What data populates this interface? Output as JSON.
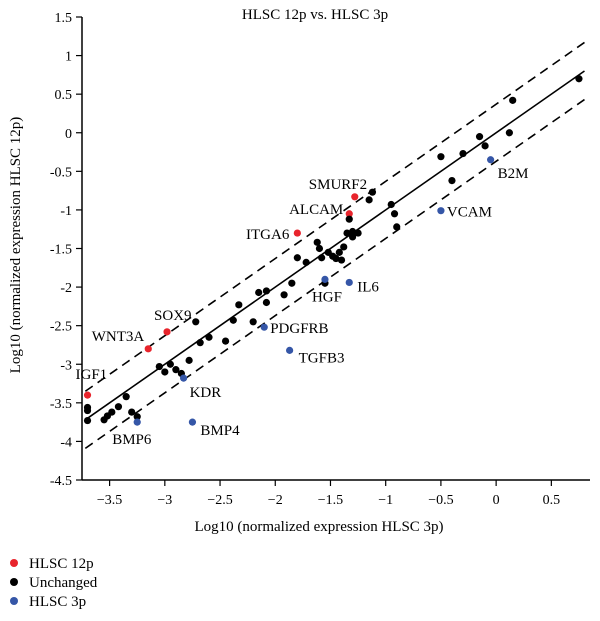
{
  "chart_data": {
    "type": "scatter",
    "title": "HLSC 12p vs. HLSC 3p",
    "xlabel": "Log10 (normalized expression HLSC 3p)",
    "ylabel": "Log10 (normalized expression HLSC 12p)",
    "xlim": [
      -3.75,
      0.85
    ],
    "ylim": [
      -4.5,
      1.5
    ],
    "xticks": [
      "-3.5",
      "-3",
      "-2.5",
      "-2",
      "-1.5",
      "-1",
      "-0.5",
      "0",
      "0.5"
    ],
    "xtick_values": [
      -3.5,
      -3,
      -2.5,
      -2,
      -1.5,
      -1,
      -0.5,
      0,
      0.5
    ],
    "yticks": [
      "1.5",
      "1",
      "0.5",
      "0",
      "-0.5",
      "-1",
      "-1.5",
      "-2",
      "-2.5",
      "-3",
      "-3.5",
      "-4",
      "-4.5"
    ],
    "ytick_values": [
      1.5,
      1,
      0.5,
      0,
      -0.5,
      -1,
      -1.5,
      -2,
      -2.5,
      -3,
      -3.5,
      -4,
      -4.5
    ],
    "grid": false,
    "legend_position": "bottom-left",
    "reference_lines": {
      "identity": {
        "slope": 1,
        "intercept": 0,
        "style": "solid"
      },
      "bounds": [
        {
          "slope": 1,
          "intercept": 0.37,
          "style": "dashed"
        },
        {
          "slope": 1,
          "intercept": -0.37,
          "style": "dashed"
        }
      ]
    },
    "series": [
      {
        "name": "HLSC 12p",
        "color": "#e8242c",
        "points": [
          {
            "x": -3.7,
            "y": -3.4,
            "label": "IGF1"
          },
          {
            "x": -3.15,
            "y": -2.8,
            "label": "WNT3A"
          },
          {
            "x": -2.98,
            "y": -2.58,
            "label": "SOX9"
          },
          {
            "x": -1.8,
            "y": -1.3,
            "label": "ITGA6"
          },
          {
            "x": -1.33,
            "y": -1.05,
            "label": "ALCAM"
          },
          {
            "x": -1.28,
            "y": -0.83,
            "label": "SMURF2"
          }
        ]
      },
      {
        "name": "Unchanged",
        "color": "#000000",
        "points": [
          {
            "x": -3.7,
            "y": -3.73
          },
          {
            "x": -3.7,
            "y": -3.6
          },
          {
            "x": -3.7,
            "y": -3.56
          },
          {
            "x": -3.55,
            "y": -3.72
          },
          {
            "x": -3.52,
            "y": -3.67
          },
          {
            "x": -3.48,
            "y": -3.62
          },
          {
            "x": -3.42,
            "y": -3.55
          },
          {
            "x": -3.35,
            "y": -3.42
          },
          {
            "x": -3.3,
            "y": -3.62
          },
          {
            "x": -3.25,
            "y": -3.68
          },
          {
            "x": -3.05,
            "y": -3.03
          },
          {
            "x": -3.0,
            "y": -3.1
          },
          {
            "x": -2.95,
            "y": -3.0
          },
          {
            "x": -2.9,
            "y": -3.07
          },
          {
            "x": -2.85,
            "y": -3.12
          },
          {
            "x": -2.78,
            "y": -2.95
          },
          {
            "x": -2.72,
            "y": -2.45
          },
          {
            "x": -2.68,
            "y": -2.72
          },
          {
            "x": -2.6,
            "y": -2.65
          },
          {
            "x": -2.45,
            "y": -2.7
          },
          {
            "x": -2.38,
            "y": -2.43
          },
          {
            "x": -2.33,
            "y": -2.23
          },
          {
            "x": -2.2,
            "y": -2.45
          },
          {
            "x": -2.15,
            "y": -2.07
          },
          {
            "x": -2.08,
            "y": -2.2
          },
          {
            "x": -2.08,
            "y": -2.05
          },
          {
            "x": -1.92,
            "y": -2.1
          },
          {
            "x": -1.85,
            "y": -1.95
          },
          {
            "x": -1.8,
            "y": -1.62
          },
          {
            "x": -1.72,
            "y": -1.68
          },
          {
            "x": -1.62,
            "y": -1.42
          },
          {
            "x": -1.6,
            "y": -1.5
          },
          {
            "x": -1.58,
            "y": -1.62
          },
          {
            "x": -1.55,
            "y": -1.95
          },
          {
            "x": -1.52,
            "y": -1.55
          },
          {
            "x": -1.48,
            "y": -1.6
          },
          {
            "x": -1.45,
            "y": -1.63
          },
          {
            "x": -1.42,
            "y": -1.55
          },
          {
            "x": -1.4,
            "y": -1.65
          },
          {
            "x": -1.38,
            "y": -1.48
          },
          {
            "x": -1.35,
            "y": -1.3
          },
          {
            "x": -1.33,
            "y": -1.12
          },
          {
            "x": -1.3,
            "y": -1.35
          },
          {
            "x": -1.3,
            "y": -1.28
          },
          {
            "x": -1.25,
            "y": -1.3
          },
          {
            "x": -1.15,
            "y": -0.87
          },
          {
            "x": -1.12,
            "y": -0.77
          },
          {
            "x": -0.95,
            "y": -0.93
          },
          {
            "x": -0.92,
            "y": -1.05
          },
          {
            "x": -0.9,
            "y": -1.22
          },
          {
            "x": -0.5,
            "y": -0.31
          },
          {
            "x": -0.4,
            "y": -0.62
          },
          {
            "x": -0.3,
            "y": -0.27
          },
          {
            "x": -0.15,
            "y": -0.05
          },
          {
            "x": -0.1,
            "y": -0.17
          },
          {
            "x": 0.12,
            "y": 0.0
          },
          {
            "x": 0.15,
            "y": 0.42
          },
          {
            "x": 0.75,
            "y": 0.7
          }
        ]
      },
      {
        "name": "HLSC 3p",
        "color": "#3556a7",
        "points": [
          {
            "x": -3.25,
            "y": -3.75,
            "label": "BMP6"
          },
          {
            "x": -2.75,
            "y": -3.75,
            "label": "BMP4"
          },
          {
            "x": -2.83,
            "y": -3.18,
            "label": "KDR"
          },
          {
            "x": -2.1,
            "y": -2.52,
            "label": "PDGFRB"
          },
          {
            "x": -1.87,
            "y": -2.82,
            "label": "TGFB3"
          },
          {
            "x": -1.55,
            "y": -1.9,
            "label": "HGF"
          },
          {
            "x": -1.33,
            "y": -1.94,
            "label": "IL6"
          },
          {
            "x": -0.5,
            "y": -1.01,
            "label": "VCAM"
          },
          {
            "x": -0.05,
            "y": -0.35,
            "label": "B2M"
          }
        ]
      }
    ]
  }
}
